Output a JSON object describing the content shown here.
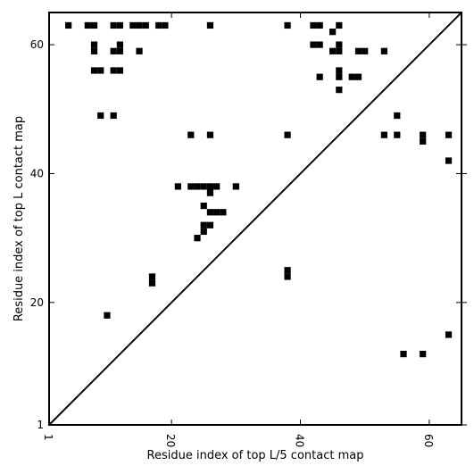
{
  "chart_data": {
    "type": "heatmap",
    "xlabel": "Residue index of top L/5 contact map",
    "ylabel": "Residue index of top L contact map",
    "xlim": [
      1,
      65
    ],
    "ylim": [
      1,
      65
    ],
    "xticks": [
      1,
      20,
      40,
      60
    ],
    "yticks": [
      1,
      20,
      40,
      60
    ],
    "diagonal": true,
    "grid": false,
    "color": "#000000",
    "cells": [
      [
        4,
        63
      ],
      [
        7,
        63
      ],
      [
        8,
        63
      ],
      [
        11,
        63
      ],
      [
        12,
        63
      ],
      [
        14,
        63
      ],
      [
        15,
        63
      ],
      [
        16,
        63
      ],
      [
        18,
        63
      ],
      [
        19,
        63
      ],
      [
        26,
        63
      ],
      [
        38,
        63
      ],
      [
        42,
        63
      ],
      [
        43,
        63
      ],
      [
        46,
        63
      ],
      [
        45,
        62
      ],
      [
        8,
        60
      ],
      [
        8,
        59
      ],
      [
        12,
        60
      ],
      [
        11,
        59
      ],
      [
        12,
        59
      ],
      [
        15,
        59
      ],
      [
        42,
        60
      ],
      [
        43,
        60
      ],
      [
        45,
        59
      ],
      [
        46,
        60
      ],
      [
        46,
        59
      ],
      [
        49,
        59
      ],
      [
        50,
        59
      ],
      [
        53,
        59
      ],
      [
        8,
        56
      ],
      [
        9,
        56
      ],
      [
        11,
        56
      ],
      [
        12,
        56
      ],
      [
        43,
        55
      ],
      [
        46,
        56
      ],
      [
        46,
        55
      ],
      [
        48,
        55
      ],
      [
        49,
        55
      ],
      [
        46,
        53
      ],
      [
        9,
        49
      ],
      [
        11,
        49
      ],
      [
        55,
        49
      ],
      [
        23,
        46
      ],
      [
        26,
        46
      ],
      [
        38,
        46
      ],
      [
        53,
        46
      ],
      [
        55,
        46
      ],
      [
        59,
        46
      ],
      [
        59,
        45
      ],
      [
        63,
        46
      ],
      [
        63,
        42
      ],
      [
        21,
        38
      ],
      [
        23,
        38
      ],
      [
        24,
        38
      ],
      [
        25,
        38
      ],
      [
        26,
        38
      ],
      [
        27,
        38
      ],
      [
        30,
        38
      ],
      [
        26,
        37
      ],
      [
        25,
        35
      ],
      [
        26,
        34
      ],
      [
        27,
        34
      ],
      [
        28,
        34
      ],
      [
        25,
        32
      ],
      [
        26,
        32
      ],
      [
        25,
        31
      ],
      [
        24,
        30
      ],
      [
        38,
        25
      ],
      [
        38,
        24
      ],
      [
        17,
        24
      ],
      [
        17,
        23
      ],
      [
        10,
        18
      ],
      [
        63,
        15
      ],
      [
        56,
        12
      ],
      [
        59,
        12
      ]
    ]
  }
}
